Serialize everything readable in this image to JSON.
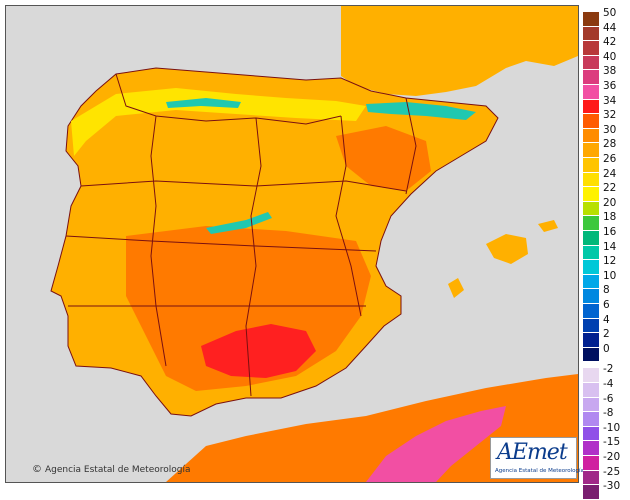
{
  "copyright": "Agencia Estatal de Meteorología",
  "logo": {
    "word": "AEmet",
    "subtitle": "Agencia Estatal de Meteorología"
  },
  "legend": {
    "upper": [
      {
        "label": "50",
        "color": "#8b3a0f"
      },
      {
        "label": "44",
        "color": "#a33a2a"
      },
      {
        "label": "42",
        "color": "#b8393a"
      },
      {
        "label": "40",
        "color": "#c83a5a"
      },
      {
        "label": "38",
        "color": "#dc3c7e"
      },
      {
        "label": "36",
        "color": "#f24fa3"
      },
      {
        "label": "34",
        "color": "#ff1a1a"
      },
      {
        "label": "32",
        "color": "#ff5a00"
      },
      {
        "label": "30",
        "color": "#ff8c00"
      },
      {
        "label": "28",
        "color": "#ffa800"
      },
      {
        "label": "26",
        "color": "#ffc400"
      },
      {
        "label": "24",
        "color": "#ffdf00"
      },
      {
        "label": "22",
        "color": "#fff200"
      },
      {
        "label": "20",
        "color": "#b8e000"
      },
      {
        "label": "18",
        "color": "#3cc83c"
      },
      {
        "label": "16",
        "color": "#00b87a"
      },
      {
        "label": "14",
        "color": "#00c8a8"
      },
      {
        "label": "12",
        "color": "#00c8d8"
      },
      {
        "label": "10",
        "color": "#00a8e8"
      },
      {
        "label": "8",
        "color": "#0088e0"
      },
      {
        "label": "6",
        "color": "#0064d0"
      },
      {
        "label": "4",
        "color": "#0040b0"
      },
      {
        "label": "2",
        "color": "#002090"
      },
      {
        "label": "0",
        "color": "#001060"
      }
    ],
    "lower": [
      {
        "label": "-2",
        "color": "#e8d8f0"
      },
      {
        "label": "-4",
        "color": "#d8c0f0"
      },
      {
        "label": "-6",
        "color": "#c8a8f0"
      },
      {
        "label": "-8",
        "color": "#b088f0"
      },
      {
        "label": "-10",
        "color": "#9050e8"
      },
      {
        "label": "-15",
        "color": "#b030c8"
      },
      {
        "label": "-20",
        "color": "#d020a0"
      },
      {
        "label": "-25",
        "color": "#a02888"
      },
      {
        "label": "-30",
        "color": "#7a1e70"
      }
    ]
  },
  "colors": {
    "sea": "#d9d9d9",
    "land_base": "#ffb000",
    "hot": "#ff7a00",
    "very_hot": "#ff2020",
    "cool": "#ffe400",
    "mountain": "#20c8b0",
    "border": "#7a1010"
  }
}
